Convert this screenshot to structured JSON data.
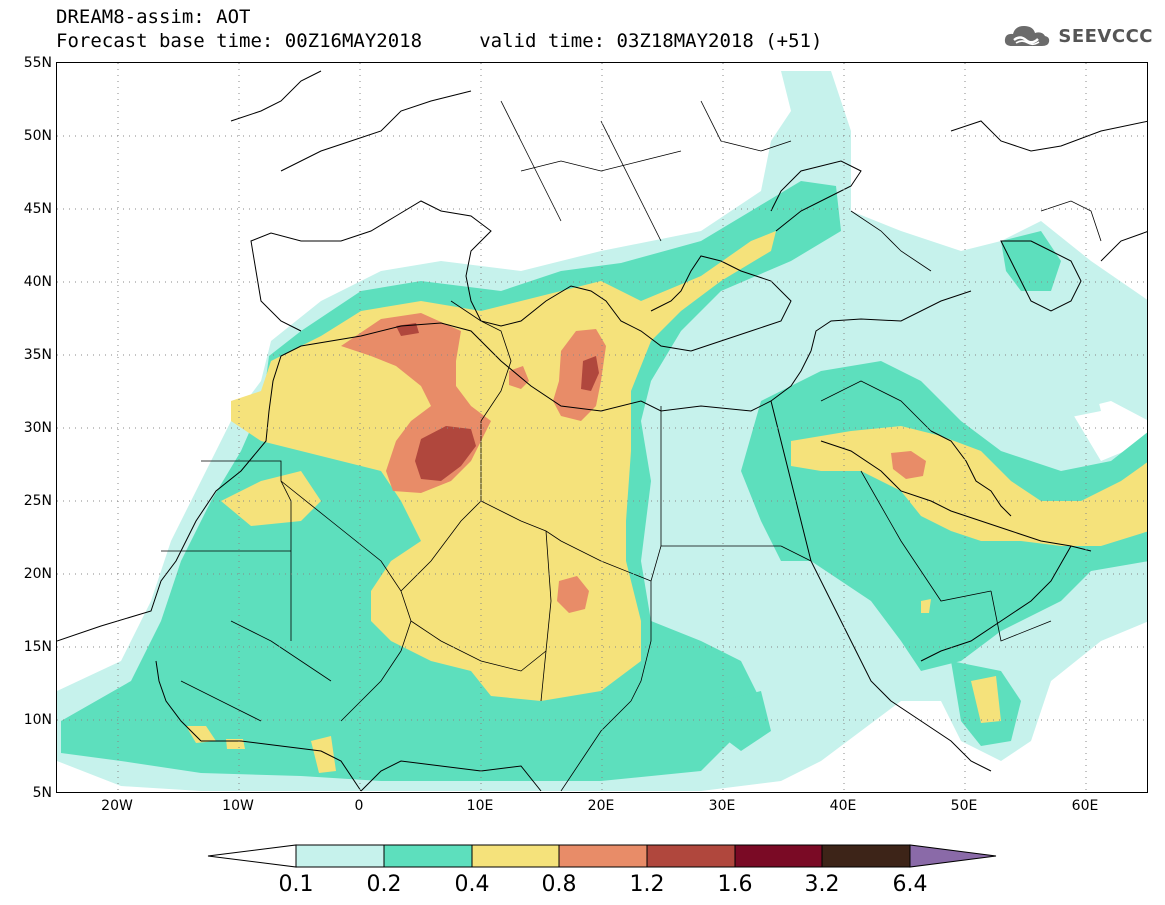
{
  "header": {
    "title_line1": "DREAM8-assim: AOT",
    "title_line2": "Forecast base time: 00Z16MAY2018     valid time: 03Z18MAY2018 (+51)",
    "logo_text": "SEEVCCC"
  },
  "map": {
    "lon_range": [
      -25,
      65
    ],
    "lat_range": [
      5,
      55
    ],
    "lat_ticks": [
      "55N",
      "50N",
      "45N",
      "40N",
      "35N",
      "30N",
      "25N",
      "20N",
      "15N",
      "10N",
      "5N"
    ],
    "lat_values": [
      55,
      50,
      45,
      40,
      35,
      30,
      25,
      20,
      15,
      10,
      5
    ],
    "lon_ticks": [
      "20W",
      "10W",
      "0",
      "10E",
      "20E",
      "30E",
      "40E",
      "50E",
      "60E"
    ],
    "lon_values": [
      -20,
      -10,
      0,
      10,
      20,
      30,
      40,
      50,
      60
    ],
    "grid": "dotted"
  },
  "colorbar": {
    "labels": [
      "0.1",
      "0.2",
      "0.4",
      "0.8",
      "1.2",
      "1.6",
      "3.2",
      "6.4"
    ],
    "colors": [
      "#ffffff",
      "#c6f2ec",
      "#5ddfbd",
      "#f5e27b",
      "#e88c68",
      "#b0473d",
      "#7a0a25",
      "#3d2418",
      "#8a6aa8"
    ]
  }
}
